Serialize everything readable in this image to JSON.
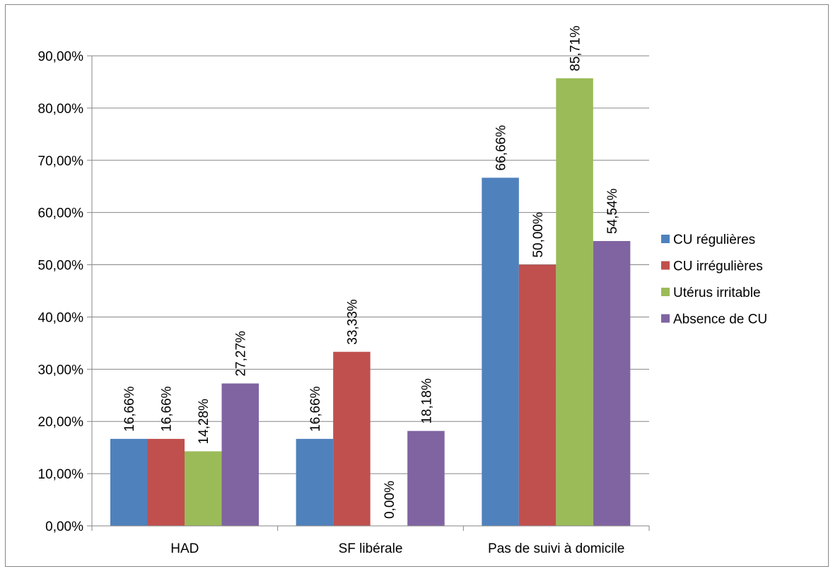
{
  "chart_data": {
    "type": "bar",
    "categories": [
      "HAD",
      "SF libérale",
      "Pas de suivi à domicile"
    ],
    "series": [
      {
        "name": "CU régulières",
        "color": "#4F81BD",
        "values": [
          16.66,
          16.66,
          66.66
        ],
        "labels": [
          "16,66%",
          "16,66%",
          "66,66%"
        ]
      },
      {
        "name": "CU irrégulières",
        "color": "#C0504D",
        "values": [
          16.66,
          33.33,
          50.0
        ],
        "labels": [
          "16,66%",
          "33,33%",
          "50,00%"
        ]
      },
      {
        "name": "Utérus irritable",
        "color": "#9BBB59",
        "values": [
          14.28,
          0.0,
          85.71
        ],
        "labels": [
          "14,28%",
          "0,00%",
          "85,71%"
        ]
      },
      {
        "name": "Absence de CU",
        "color": "#8064A2",
        "values": [
          27.27,
          18.18,
          54.54
        ],
        "labels": [
          "27,27%",
          "18,18%",
          "54,54%"
        ]
      }
    ],
    "ylim": [
      0,
      90
    ],
    "yticks": [
      {
        "value": 0,
        "label": "0,00%"
      },
      {
        "value": 10,
        "label": "10,00%"
      },
      {
        "value": 20,
        "label": "20,00%"
      },
      {
        "value": 30,
        "label": "30,00%"
      },
      {
        "value": 40,
        "label": "40,00%"
      },
      {
        "value": 50,
        "label": "50,00%"
      },
      {
        "value": 60,
        "label": "60,00%"
      },
      {
        "value": 70,
        "label": "70,00%"
      },
      {
        "value": 80,
        "label": "80,00%"
      },
      {
        "value": 90,
        "label": "90,00%"
      }
    ],
    "grid": true,
    "legend_position": "right",
    "data_label_orientation": "vertical",
    "gridline_color": "#868686"
  }
}
